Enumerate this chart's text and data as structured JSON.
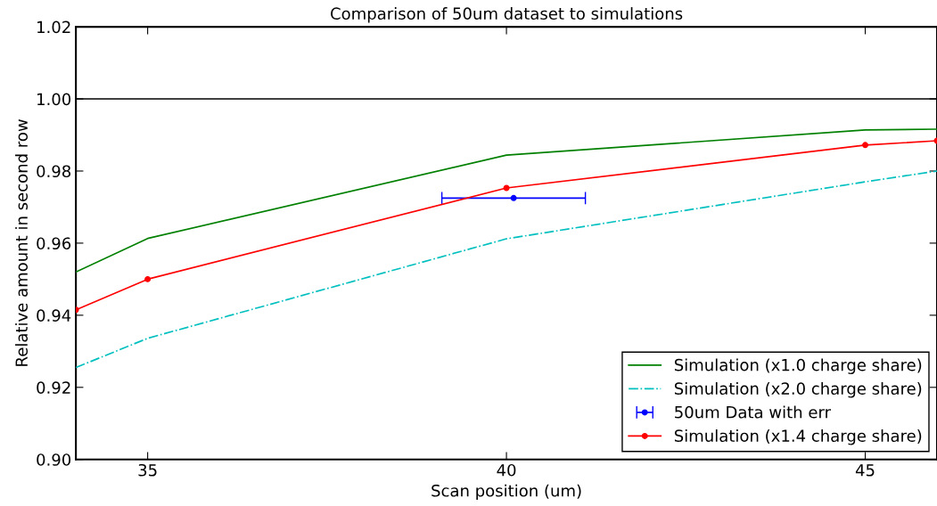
{
  "chart_data": {
    "type": "line",
    "title": "Comparison of 50um dataset to simulations",
    "xlabel": "Scan position (um)",
    "ylabel": "Relative amount in second row",
    "xlim": [
      34,
      46
    ],
    "ylim": [
      0.9,
      1.02
    ],
    "xticks": [
      35,
      40,
      45
    ],
    "yticks": [
      {
        "value": 0.9,
        "label": "0.90"
      },
      {
        "value": 0.92,
        "label": "0.92"
      },
      {
        "value": 0.94,
        "label": "0.94"
      },
      {
        "value": 0.96,
        "label": "0.96"
      },
      {
        "value": 0.98,
        "label": "0.98"
      },
      {
        "value": 1.0,
        "label": "1.00"
      },
      {
        "value": 1.02,
        "label": "1.02"
      }
    ],
    "grid": false,
    "legend": "bottom right",
    "ref_lines": [
      {
        "axis": "y",
        "value": 1.0,
        "color": "#000000"
      }
    ],
    "series": [
      {
        "name": "Simulation (x1.0 charge share)",
        "type": "line",
        "color": "#008000",
        "x": [
          34,
          35,
          40,
          45,
          46
        ],
        "values": [
          0.952,
          0.9613,
          0.9844,
          0.9914,
          0.9916
        ],
        "line_style": "solid",
        "marker": "none"
      },
      {
        "name": "Simulation (x2.0 charge share)",
        "type": "line",
        "color": "#00bfbf",
        "x": [
          34,
          35,
          40,
          45,
          46
        ],
        "values": [
          0.9255,
          0.9336,
          0.9612,
          0.977,
          0.98
        ],
        "line_style": "dashdot",
        "marker": "none"
      },
      {
        "name": "50um Data with err",
        "type": "scatter",
        "color": "#0000ff",
        "x": [
          40.1
        ],
        "values": [
          0.9725
        ],
        "xerrors": [
          1.0
        ],
        "marker": "circle"
      },
      {
        "name": "Simulation (x1.4 charge share)",
        "type": "line",
        "color": "#ff0000",
        "x": [
          34,
          35,
          40,
          45,
          46
        ],
        "values": [
          0.9415,
          0.95,
          0.9753,
          0.9872,
          0.9884
        ],
        "line_style": "solid",
        "marker": "circle"
      }
    ]
  }
}
